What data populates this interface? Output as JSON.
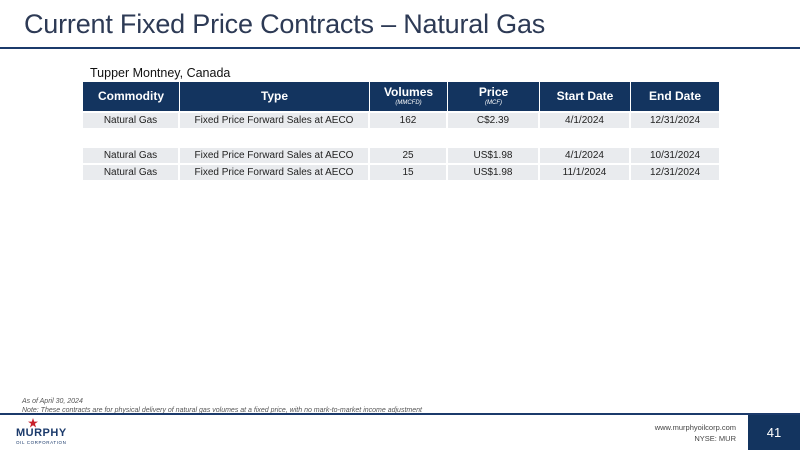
{
  "slide": {
    "title": "Current Fixed Price Contracts – Natural Gas",
    "subtitle": "Tupper Montney, Canada",
    "page_number": "41"
  },
  "table": {
    "headers": [
      {
        "label": "Commodity",
        "sub": ""
      },
      {
        "label": "Type",
        "sub": ""
      },
      {
        "label": "Volumes",
        "sub": "(MMCFD)"
      },
      {
        "label": "Price",
        "sub": "(MCF)"
      },
      {
        "label": "Start Date",
        "sub": ""
      },
      {
        "label": "End Date",
        "sub": ""
      }
    ],
    "rows": [
      [
        "Natural Gas",
        "Fixed Price Forward Sales at AECO",
        "162",
        "C$2.39",
        "4/1/2024",
        "12/31/2024"
      ],
      [
        "Natural Gas",
        "Fixed Price Forward Sales at AECO",
        "25",
        "US$1.98",
        "4/1/2024",
        "10/31/2024"
      ],
      [
        "Natural Gas",
        "Fixed Price Forward Sales at AECO",
        "15",
        "US$1.98",
        "11/1/2024",
        "12/31/2024"
      ]
    ]
  },
  "footnotes": {
    "date": "As of April 30, 2024",
    "note": "Note: These contracts are for physical delivery of natural gas volumes at a fixed price, with no mark-to-market income adjustment"
  },
  "footer": {
    "logo_word": "MURPHY",
    "logo_tag": "OIL CORPORATION",
    "website": "www.murphyoilcorp.com",
    "ticker": "NYSE: MUR"
  },
  "colors": {
    "header_bg": "#13345f",
    "row_bg": "#e9ebee",
    "title": "#2d3a55",
    "logo_star": "#c8202b"
  }
}
